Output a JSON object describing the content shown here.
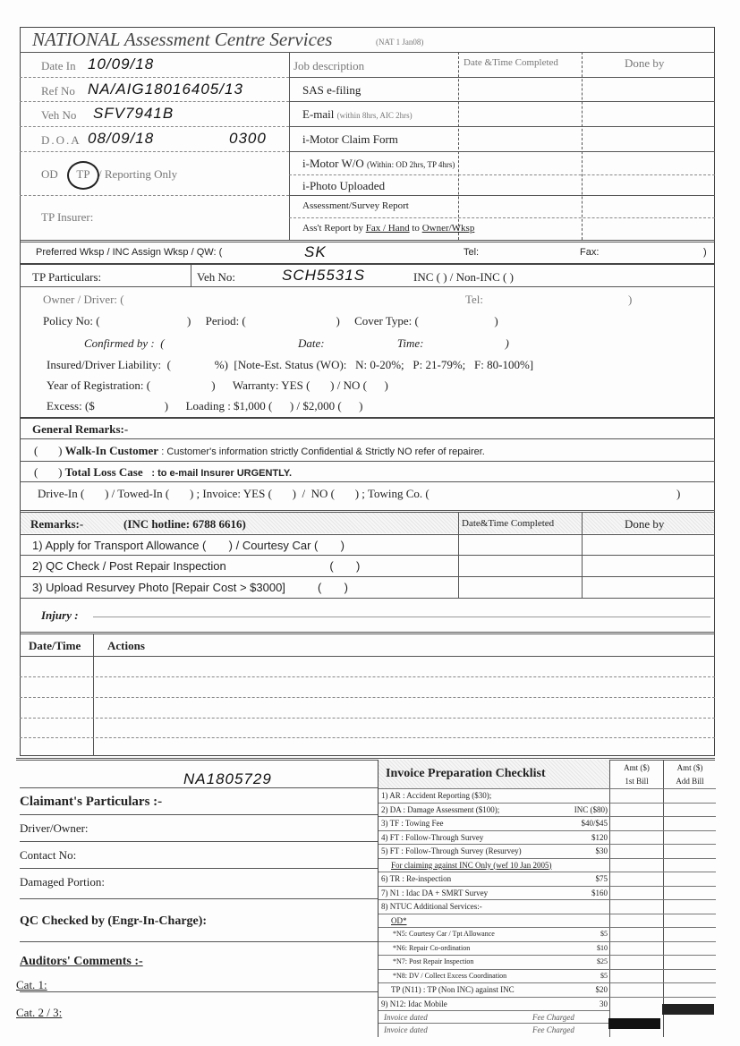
{
  "header": {
    "title": "NATIONAL Assessment Centre Services",
    "form_code": "(NAT 1 Jan08)"
  },
  "top": {
    "date_in_label": "Date In",
    "date_in": "10/09/18",
    "ref_no_label": "Ref No",
    "ref_no": "NA/AIG18016405/13",
    "veh_no_label": "Veh No",
    "veh_no": "SFV7941B",
    "doa_label": "D.O.A",
    "doa": "08/09/18",
    "doa_time": "0300",
    "od_label": "OD",
    "tp_label": "TP",
    "reporting_label": "/ Reporting Only",
    "tp_insurer_label": "TP Insurer:"
  },
  "jobs": {
    "headers": [
      "Job description",
      "Date &Time Completed",
      "Done by"
    ],
    "items": [
      {
        "label": "SAS e-filing",
        "note": ""
      },
      {
        "label": "E-mail",
        "note": "(within 8hrs, AIC 2hrs)"
      },
      {
        "label": "i-Motor Claim Form",
        "note": ""
      },
      {
        "label": "i-Motor W/O",
        "note": "(Within: OD 2hrs, TP 4hrs)"
      },
      {
        "label": "i-Photo Uploaded",
        "note": ""
      },
      {
        "label": "Assessment/Survey Report",
        "note": ""
      }
    ],
    "last": {
      "prefix": "Ass't Report by ",
      "fax": "Fax / Hand",
      "to": " to ",
      "owner": "Owner/Wksp"
    }
  },
  "wksp": {
    "label": "Preferred Wksp / INC Assign Wksp / QW: (",
    "value": "SK",
    "tel": "Tel:",
    "fax": "Fax:",
    "close": ")"
  },
  "tp": {
    "label": "TP Particulars:",
    "veh_label": "Veh No:",
    "veh_no": "SCH5531S",
    "inc": "INC (     ) / Non-INC (     )",
    "rows": [
      "Owner / Driver: (",
      "Policy No: (                              )     Period: (                               )     Cover Type: (                          )",
      "Confirmed by :  (                                              Date:                         Time:                            )",
      "Insured/Driver Liability:  (               %)  [Note-Est. Status (WO):   N: 0-20%;   P: 21-79%;   F: 80-100%]",
      "Year of Registration: (                     )      Warranty: YES (       ) / NO (      )",
      "Excess: ($                        )      Loading : $1,000 (      ) / $2,000 (      )"
    ],
    "owner_tel": "Tel:"
  },
  "general": {
    "label": "General Remarks:-",
    "walkin": {
      "bold": "Walk-In Customer",
      "rest": ": Customer's information strictly Confidential & Strictly NO refer of repairer."
    },
    "totalloss": {
      "bold": "Total Loss Case",
      "rest": ": to e-mail Insurer URGENTLY."
    },
    "drive": "Drive-In (       ) / Towed-In (       ) ; Invoice: YES (       )  /  NO (       ) ; Towing Co. ("
  },
  "remarks": {
    "label": "Remarks:-",
    "hotline": "(INC hotline: 6788 6616)",
    "col2": "Date&Time Completed",
    "col3": "Done by",
    "items": [
      "1) Apply for Transport Allowance (       ) / Courtesy Car (       )",
      "2) QC Check / Post Repair Inspection                                (       )",
      "3) Upload Resurvey Photo [Repair Cost > $3000]          (       )"
    ]
  },
  "injury": {
    "label": "Injury :"
  },
  "actions": {
    "headers": [
      "Date/Time",
      "Actions"
    ]
  },
  "claimant": {
    "handwritten": "NA1805729",
    "title": "Claimant's Particulars :-",
    "fields": [
      "Driver/Owner:",
      "Contact No:",
      "Damaged Portion:"
    ],
    "qc": "QC Checked by (Engr-In-Charge):",
    "auditors": "Auditors' Comments :-",
    "cat1": "Cat. 1:",
    "cat23": "Cat. 2 / 3:"
  },
  "invoice": {
    "title": "Invoice Preparation Checklist",
    "amt1": [
      "Amt ($)",
      "1st Bill"
    ],
    "amt2": [
      "Amt ($)",
      "Add Bill"
    ],
    "items": [
      {
        "label": "1) AR : Accident Reporting     ($30);",
        "price": ""
      },
      {
        "label": "2) DA : Damage Assessment   ($100);",
        "price": "INC ($80)"
      },
      {
        "label": "3) TF : Towing Fee",
        "price": "$40/$45"
      },
      {
        "label": "4) FT : Follow-Through Survey",
        "price": "$120"
      },
      {
        "label": "5) FT : Follow-Through Survey (Resurvey)",
        "price": "$30"
      },
      {
        "label": "For claiming against INC Only  (wef 10 Jan 2005)",
        "price": ""
      },
      {
        "label": "6) TR : Re-inspection",
        "price": "$75"
      },
      {
        "label": "7) N1 : Idac DA + SMRT Survey",
        "price": "$160"
      },
      {
        "label": "8) NTUC Additional Services:-",
        "price": ""
      },
      {
        "label": "OD*",
        "price": ""
      },
      {
        "label": "*N5: Courtesy Car / Tpt Allowance",
        "price": "$5"
      },
      {
        "label": "*N6: Repair Co-ordination",
        "price": "$10"
      },
      {
        "label": "*N7: Post Repair Inspection",
        "price": "$25"
      },
      {
        "label": "*N8: DV / Collect Excess Coordination",
        "price": "$5"
      },
      {
        "label": "TP (N11) : TP (Non INC) against INC",
        "price": "$20"
      },
      {
        "label": "9) N12: Idac Mobile",
        "price": "30"
      }
    ],
    "footer": [
      {
        "label": "Invoice dated",
        "fee": "Fee Charged"
      },
      {
        "label": "Invoice dated",
        "fee": "Fee Charged"
      }
    ]
  }
}
